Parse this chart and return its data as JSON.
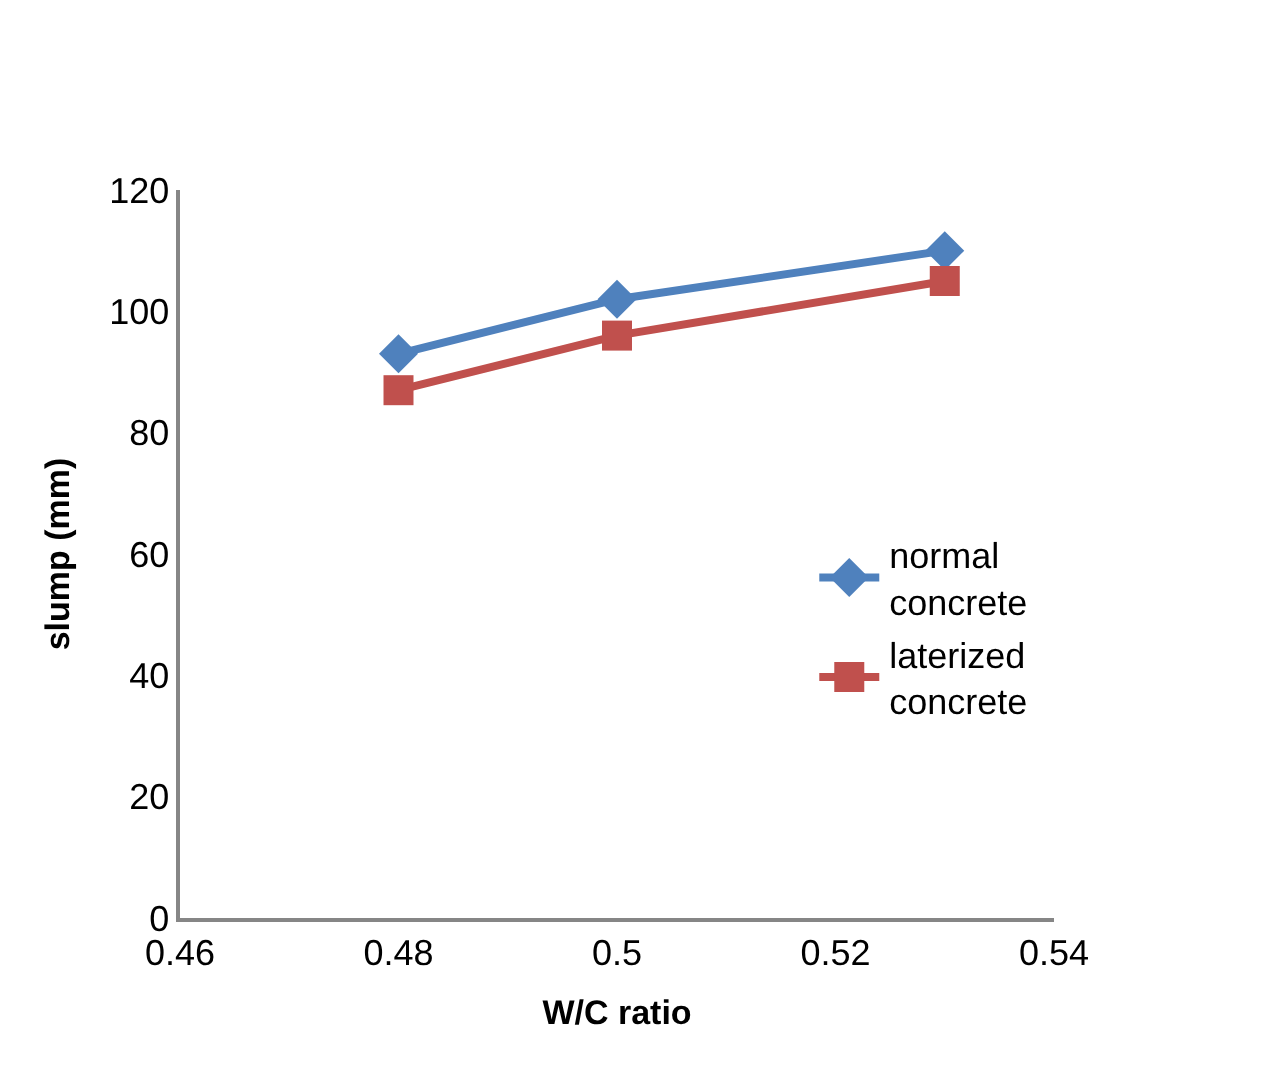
{
  "chart_data": {
    "type": "line",
    "xlabel": "W/C ratio",
    "ylabel": "slump (mm)",
    "x": [
      0.48,
      0.5,
      0.53
    ],
    "series": [
      {
        "name": "normal concrete",
        "color": "#4f81bd",
        "marker": "diamond",
        "values": [
          93,
          102,
          110
        ]
      },
      {
        "name": "laterized concrete",
        "color": "#c0504d",
        "marker": "square",
        "values": [
          87,
          96,
          105
        ]
      }
    ],
    "xlim": [
      0.46,
      0.54
    ],
    "xticks": [
      0.46,
      0.48,
      0.5,
      0.52,
      0.54
    ],
    "ylim": [
      0,
      120
    ],
    "yticks": [
      0,
      20,
      40,
      60,
      80,
      100,
      120
    ],
    "legend": "right",
    "line_style": "solid"
  }
}
